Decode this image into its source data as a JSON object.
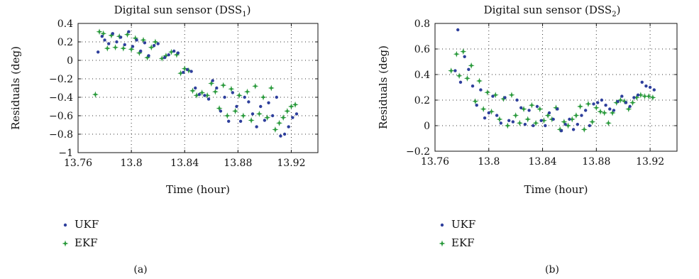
{
  "colors": {
    "ukf": "#2e3f9c",
    "ekf": "#2a9a3c"
  },
  "chart_data": [
    {
      "type": "scatter",
      "title_main": "Digital sun sensor (DSS",
      "title_sub": "1",
      "title_end": ")",
      "xlabel": "Time (hour)",
      "ylabel": "Residuals (deg)",
      "xlim": [
        13.76,
        13.94
      ],
      "ylim": [
        -1,
        0.4
      ],
      "xticks": [
        13.76,
        13.8,
        13.84,
        13.88,
        13.92
      ],
      "xtick_labels": [
        "13.76",
        "13.8",
        "13.84",
        "13.88",
        "13.92"
      ],
      "yticks": [
        -1,
        -0.8,
        -0.6,
        -0.4,
        -0.2,
        0,
        0.2,
        0.4
      ],
      "ytick_labels": [
        "−1",
        "−0.8",
        "−0.6",
        "−0.4",
        "−0.2",
        "0",
        "0.2",
        "0.4"
      ],
      "grid": true,
      "legend": [
        "UKF",
        "EKF"
      ],
      "caption": "(a)",
      "series": [
        {
          "name": "UKF",
          "marker": "dot",
          "x": [
            13.775,
            13.778,
            13.78,
            13.783,
            13.786,
            13.789,
            13.792,
            13.795,
            13.798,
            13.801,
            13.804,
            13.807,
            13.81,
            13.813,
            13.817,
            13.82,
            13.825,
            13.828,
            13.832,
            13.835,
            13.839,
            13.842,
            13.845,
            13.848,
            13.851,
            13.855,
            13.858,
            13.861,
            13.864,
            13.867,
            13.87,
            13.873,
            13.876,
            13.879,
            13.882,
            13.885,
            13.888,
            13.891,
            13.894,
            13.897,
            13.9,
            13.903,
            13.906,
            13.909,
            13.912,
            13.915,
            13.918,
            13.921,
            13.924
          ],
          "y": [
            0.09,
            0.26,
            0.22,
            0.18,
            0.29,
            0.2,
            0.25,
            0.17,
            0.31,
            0.15,
            0.22,
            0.1,
            0.19,
            0.05,
            0.16,
            0.18,
            0.03,
            0.06,
            0.1,
            0.08,
            -0.13,
            -0.1,
            -0.12,
            -0.3,
            -0.37,
            -0.38,
            -0.42,
            -0.22,
            -0.3,
            -0.55,
            -0.4,
            -0.66,
            -0.35,
            -0.5,
            -0.66,
            -0.4,
            -0.45,
            -0.58,
            -0.72,
            -0.5,
            -0.65,
            -0.46,
            -0.6,
            -0.4,
            -0.82,
            -0.8,
            -0.72,
            -0.62,
            -0.58
          ]
        },
        {
          "name": "EKF",
          "marker": "star",
          "x": [
            13.773,
            13.776,
            13.779,
            13.782,
            13.785,
            13.788,
            13.791,
            13.794,
            13.797,
            13.8,
            13.803,
            13.806,
            13.809,
            13.812,
            13.815,
            13.818,
            13.823,
            13.826,
            13.83,
            13.834,
            13.837,
            13.84,
            13.843,
            13.846,
            13.849,
            13.853,
            13.857,
            13.86,
            13.863,
            13.866,
            13.869,
            13.872,
            13.875,
            13.878,
            13.881,
            13.884,
            13.887,
            13.89,
            13.893,
            13.896,
            13.899,
            13.902,
            13.905,
            13.908,
            13.911,
            13.914,
            13.917,
            13.92,
            13.923
          ],
          "y": [
            -0.37,
            0.31,
            0.29,
            0.13,
            0.27,
            0.14,
            0.26,
            0.13,
            0.28,
            0.12,
            0.24,
            0.08,
            0.22,
            0.03,
            0.14,
            0.2,
            0.02,
            0.05,
            0.09,
            0.06,
            -0.14,
            -0.09,
            -0.11,
            -0.33,
            -0.38,
            -0.35,
            -0.38,
            -0.25,
            -0.34,
            -0.52,
            -0.27,
            -0.6,
            -0.31,
            -0.55,
            -0.38,
            -0.6,
            -0.34,
            -0.65,
            -0.28,
            -0.58,
            -0.4,
            -0.62,
            -0.3,
            -0.75,
            -0.68,
            -0.62,
            -0.55,
            -0.5,
            -0.48
          ]
        }
      ]
    },
    {
      "type": "scatter",
      "title_main": "Digital sun sensor (DSS",
      "title_sub": "2",
      "title_end": ")",
      "xlabel": "Time (hour)",
      "ylabel": "Residuals (deg)",
      "xlim": [
        13.76,
        13.94
      ],
      "ylim": [
        -0.2,
        0.8
      ],
      "xticks": [
        13.76,
        13.8,
        13.84,
        13.88,
        13.92
      ],
      "xtick_labels": [
        "13.76",
        "13.8",
        "13.84",
        "13.88",
        "13.92"
      ],
      "yticks": [
        -0.2,
        0,
        0.2,
        0.4,
        0.6,
        0.8
      ],
      "ytick_labels": [
        "−0.2",
        "0",
        "0.2",
        "0.4",
        "0.6",
        "0.8"
      ],
      "grid": true,
      "legend": [
        "UKF",
        "EKF"
      ],
      "caption": "(b)",
      "series": [
        {
          "name": "UKF",
          "marker": "dot",
          "x": [
            13.775,
            13.777,
            13.779,
            13.782,
            13.785,
            13.788,
            13.791,
            13.794,
            13.797,
            13.8,
            13.803,
            13.806,
            13.809,
            13.812,
            13.815,
            13.818,
            13.821,
            13.824,
            13.827,
            13.83,
            13.833,
            13.836,
            13.839,
            13.842,
            13.845,
            13.848,
            13.851,
            13.854,
            13.857,
            13.86,
            13.863,
            13.866,
            13.869,
            13.872,
            13.875,
            13.878,
            13.881,
            13.884,
            13.887,
            13.89,
            13.893,
            13.896,
            13.899,
            13.902,
            13.905,
            13.908,
            13.911,
            13.914,
            13.917,
            13.92,
            13.923
          ],
          "y": [
            0.43,
            0.75,
            0.34,
            0.54,
            0.44,
            0.31,
            0.16,
            0.28,
            0.06,
            0.1,
            0.23,
            0.08,
            0.02,
            0.22,
            0.04,
            0.03,
            0.2,
            0.14,
            0.01,
            0.12,
            0.0,
            0.15,
            0.04,
            0.0,
            0.1,
            0.05,
            0.13,
            -0.04,
            0.01,
            0.05,
            -0.03,
            0.01,
            0.08,
            0.12,
            0.0,
            0.17,
            0.18,
            0.2,
            0.16,
            0.13,
            0.12,
            0.19,
            0.23,
            0.18,
            0.15,
            0.22,
            0.24,
            0.34,
            0.31,
            0.3,
            0.28
          ]
        },
        {
          "name": "EKF",
          "marker": "star",
          "x": [
            13.772,
            13.776,
            13.778,
            13.781,
            13.784,
            13.787,
            13.79,
            13.793,
            13.796,
            13.799,
            13.802,
            13.805,
            13.808,
            13.811,
            13.814,
            13.817,
            13.82,
            13.823,
            13.826,
            13.829,
            13.832,
            13.835,
            13.838,
            13.841,
            13.844,
            13.847,
            13.85,
            13.853,
            13.856,
            13.859,
            13.862,
            13.865,
            13.868,
            13.871,
            13.874,
            13.877,
            13.88,
            13.883,
            13.886,
            13.889,
            13.892,
            13.895,
            13.898,
            13.901,
            13.904,
            13.907,
            13.91,
            13.913,
            13.916,
            13.919,
            13.922
          ],
          "y": [
            0.43,
            0.56,
            0.39,
            0.58,
            0.37,
            0.47,
            0.19,
            0.35,
            0.13,
            0.26,
            0.11,
            0.24,
            0.05,
            0.21,
            0.0,
            0.24,
            0.08,
            0.02,
            0.13,
            0.05,
            0.16,
            0.02,
            0.13,
            0.04,
            0.08,
            0.05,
            0.14,
            -0.03,
            0.03,
            0.0,
            0.05,
            0.08,
            0.15,
            -0.03,
            0.17,
            0.03,
            0.14,
            0.11,
            0.1,
            0.02,
            0.1,
            0.18,
            0.2,
            0.19,
            0.13,
            0.18,
            0.22,
            0.24,
            0.23,
            0.23,
            0.22
          ]
        }
      ]
    }
  ]
}
